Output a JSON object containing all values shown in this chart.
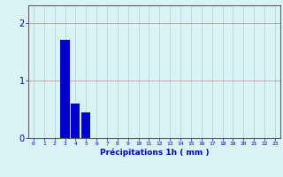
{
  "categories": [
    0,
    1,
    2,
    3,
    4,
    5,
    6,
    7,
    8,
    9,
    10,
    11,
    12,
    13,
    14,
    15,
    16,
    17,
    18,
    19,
    20,
    21,
    22,
    23
  ],
  "values": [
    0,
    0,
    0,
    1.7,
    0.6,
    0.45,
    0,
    0,
    0,
    0,
    0,
    0,
    0,
    0,
    0,
    0,
    0,
    0,
    0,
    0,
    0,
    0,
    0,
    0
  ],
  "bar_color": "#0000cc",
  "background_color": "#d8f4f4",
  "grid_color_h": "#c8a0a0",
  "grid_color_v": "#b8c8c8",
  "xlabel": "Précipitations 1h ( mm )",
  "xlabel_color": "#0000cc",
  "ylabel_color": "#0000cc",
  "tick_color": "#0000cc",
  "yticks": [
    0,
    1,
    2
  ],
  "ylim": [
    0,
    2.3
  ],
  "xlim": [
    -0.5,
    23.5
  ],
  "bar_width": 0.85
}
